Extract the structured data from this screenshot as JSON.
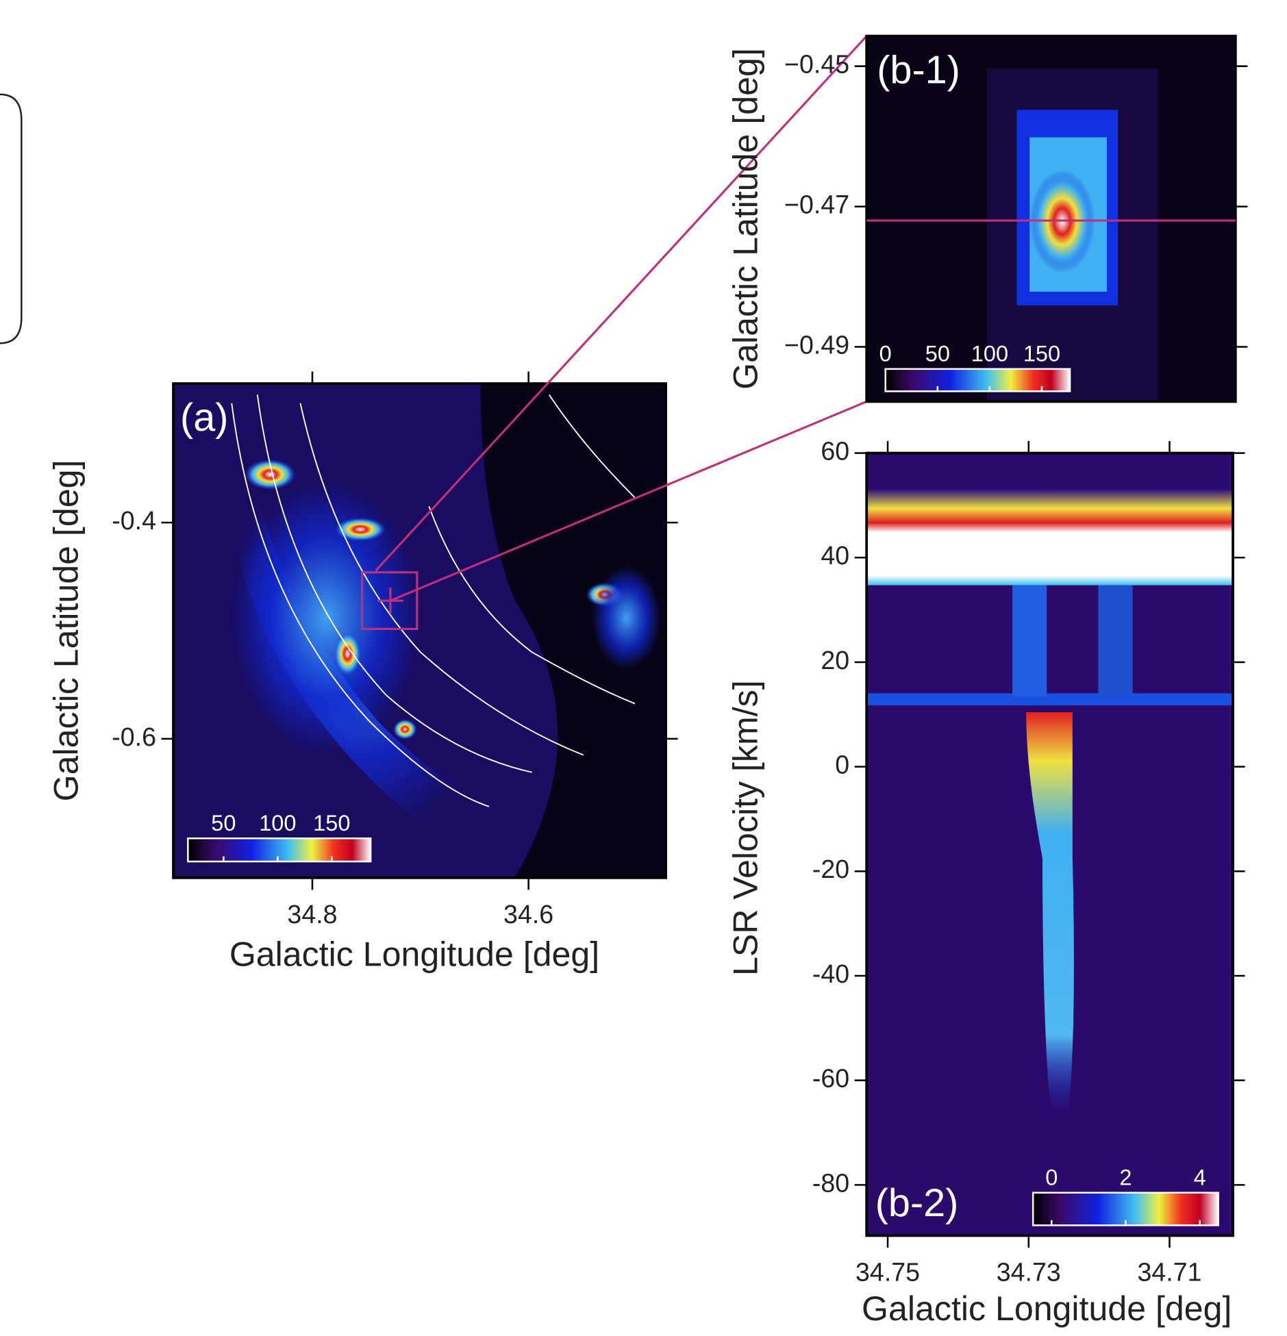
{
  "chart_data": [
    {
      "type": "heatmap",
      "annotation": "(a)",
      "xlabel": "Galactic Longitude  [deg]",
      "ylabel": "Galactic Latitude  [deg]",
      "xlim": [
        34.9286,
        34.473
      ],
      "xticks": [
        34.8,
        34.6
      ],
      "ylim": [
        -0.7286,
        -0.2714
      ],
      "yticks": [
        -0.6,
        -0.4
      ],
      "clim": [
        17,
        186
      ],
      "cticks": [
        50,
        100,
        150
      ]
    },
    {
      "type": "heatmap",
      "annotation": "(b-1)",
      "ylabel": "Galactic Latitude  [deg]",
      "ylim": [
        -0.4978,
        -0.4457
      ],
      "yticks": [
        {
          "value": -0.49,
          "label": "−0.49"
        },
        {
          "value": -0.47,
          "label": "−0.47"
        },
        {
          "value": -0.45,
          "label": "−0.45"
        }
      ],
      "clim": [
        0,
        177
      ],
      "cticks": [
        0,
        50,
        100,
        150
      ]
    },
    {
      "type": "heatmap",
      "annotation": "(b-2)",
      "xlabel": "Galactic Longitude  [deg]",
      "ylabel": "LSR Velocity [km/s]",
      "xlim": [
        34.753,
        34.701
      ],
      "xticks": [
        34.75,
        34.73,
        34.71
      ],
      "ylim": [
        -89.7,
        60
      ],
      "yticks": [
        -80,
        -60,
        -40,
        -20,
        0,
        20,
        40,
        60
      ],
      "clim": [
        -0.5,
        4.5
      ],
      "cticks": [
        0,
        2,
        4
      ]
    }
  ]
}
